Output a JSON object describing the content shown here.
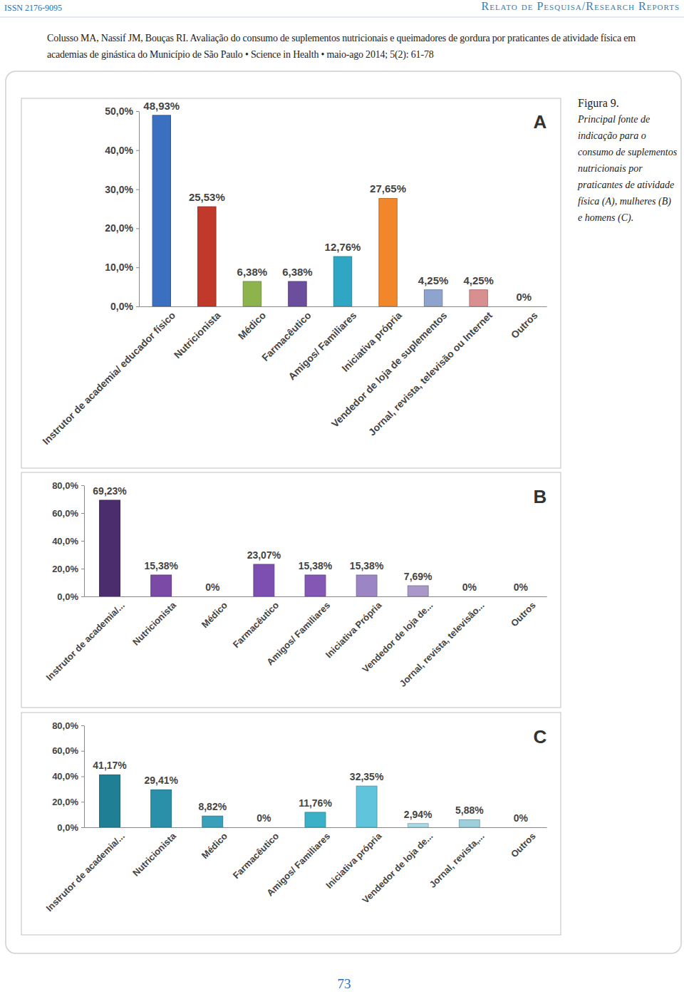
{
  "header": {
    "issn": "ISSN 2176-9095",
    "section": "Relato de Pesquisa/Research Reports",
    "citation": "Colusso MA, Nassif JM, Bouças RI. Avaliação do consumo de suplementos nutricionais e queimadores de gordura por praticantes de atividade física em academias de ginástica do Município de São Paulo • Science in Health • maio-ago 2014; 5(2): 61-78"
  },
  "caption": {
    "label": "Figura 9.",
    "text": "Principal fonte de indicação para o consumo de suplementos nutricionais por praticantes de atividade física (A), mulheres (B) e homens (C)."
  },
  "page_number": "73",
  "chart_data": [
    {
      "type": "bar",
      "title": "A",
      "categories": [
        "Instrutor de academia/ educador físico",
        "Nutricionista",
        "Médico",
        "Farmacêutico",
        "Amigos/ Familiares",
        "Iniciativa própria",
        "Vendedor de loja de suplementos",
        "Jornal, revista, televisão ou Internet",
        "Outros"
      ],
      "values": [
        48.93,
        25.53,
        6.38,
        6.38,
        12.76,
        27.65,
        4.25,
        4.25,
        0
      ],
      "value_labels": [
        "48,93%",
        "25,53%",
        "6,38%",
        "6,38%",
        "12,76%",
        "27,65%",
        "4,25%",
        "4,25%",
        "0%"
      ],
      "colors": [
        "#3b6fc0",
        "#c0392b",
        "#8db34c",
        "#6c4e9e",
        "#2fa6c3",
        "#f2862a",
        "#8fa3cf",
        "#d98f8f",
        "#9e9e9e"
      ],
      "ylim": [
        0,
        50
      ],
      "yticks": [
        {
          "value": 0,
          "label": "0,0%"
        },
        {
          "value": 10,
          "label": "10,0%"
        },
        {
          "value": 20,
          "label": "20,0%"
        },
        {
          "value": 30,
          "label": "30,0%"
        },
        {
          "value": 40,
          "label": "40,0%"
        },
        {
          "value": 50,
          "label": "50,0%"
        }
      ],
      "grid": false,
      "data_labels": true
    },
    {
      "type": "bar",
      "title": "B",
      "categories": [
        "Instrutor de academia/...",
        "Nutricionista",
        "Médico",
        "Farmacêutico",
        "Amigos/ Familiares",
        "Iniciativa Própria",
        "Vendedor de loja de...",
        "Jornal, revista, televisão...",
        "Outros"
      ],
      "values": [
        69.23,
        15.38,
        0,
        23.07,
        15.38,
        15.38,
        7.69,
        0,
        0
      ],
      "value_labels": [
        "69,23%",
        "15,38%",
        "0%",
        "23,07%",
        "15,38%",
        "15,38%",
        "7,69%",
        "0%",
        "0%"
      ],
      "colors": [
        "#4b2d6e",
        "#7a4aa6",
        "#8a63b5",
        "#7d4fb0",
        "#8457b4",
        "#9c85c4",
        "#a998c8",
        "#b8a9d6",
        "#c3b6dd"
      ],
      "ylim": [
        0,
        80
      ],
      "yticks": [
        {
          "value": 0,
          "label": "0,0%"
        },
        {
          "value": 20,
          "label": "20,0%"
        },
        {
          "value": 40,
          "label": "40,0%"
        },
        {
          "value": 60,
          "label": "60,0%"
        },
        {
          "value": 80,
          "label": "80,0%"
        }
      ],
      "grid": false,
      "data_labels": true
    },
    {
      "type": "bar",
      "title": "C",
      "categories": [
        "Instrutor de academia/...",
        "Nutricionista",
        "Médico",
        "Farmacêutico",
        "Amigos/ Familiares",
        "Iniciativa própria",
        "Vendedor de loja de...",
        "Jornal, revista,...",
        "Outros"
      ],
      "values": [
        41.17,
        29.41,
        8.82,
        0,
        11.76,
        32.35,
        2.94,
        5.88,
        0
      ],
      "value_labels": [
        "41,17%",
        "29,41%",
        "8,82%",
        "0%",
        "11,76%",
        "32,35%",
        "2,94%",
        "5,88%",
        "0%"
      ],
      "colors": [
        "#1f7f95",
        "#2a8fa8",
        "#3a9fb8",
        "#4db3c8",
        "#3cb0c6",
        "#5fc4dc",
        "#a9dbe6",
        "#9ecfdc",
        "#b9e0ea"
      ],
      "ylim": [
        0,
        80
      ],
      "yticks": [
        {
          "value": 0,
          "label": "0,0%"
        },
        {
          "value": 20,
          "label": "20,0%"
        },
        {
          "value": 40,
          "label": "40,0%"
        },
        {
          "value": 60,
          "label": "60,0%"
        },
        {
          "value": 80,
          "label": "80,0%"
        }
      ],
      "grid": false,
      "data_labels": true
    }
  ]
}
